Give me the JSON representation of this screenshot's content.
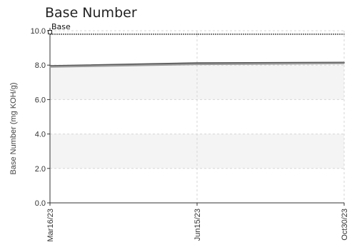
{
  "chart_data": {
    "type": "line",
    "title": "Base Number",
    "ylabel": "Base Number (mg KOH/g)",
    "xlabel": "",
    "x": [
      "Mar16/23",
      "Jun15/23",
      "Oct30/23"
    ],
    "ylim": [
      0,
      10
    ],
    "yticks": [
      "0.0",
      "2.0",
      "4.0",
      "6.0",
      "8.0",
      "10.0"
    ],
    "grid": true,
    "bands": [
      [
        2,
        4
      ],
      [
        6,
        8
      ]
    ],
    "annotation": "Base",
    "series": [
      {
        "values": [
          7.95,
          8.12,
          8.15
        ],
        "color": "#555555"
      },
      {
        "values": [
          7.9,
          8.05,
          8.1
        ],
        "color": "#9a9a9a"
      },
      {
        "values": [
          9.8,
          9.8,
          9.8
        ],
        "color": "#777777",
        "dashed": true
      }
    ]
  }
}
